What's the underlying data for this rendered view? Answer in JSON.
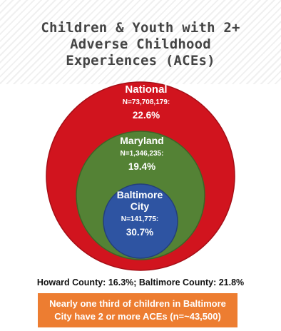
{
  "title": {
    "line1": "Children & Youth with 2+",
    "line2": "Adverse Childhood",
    "line3": "Experiences (ACEs)"
  },
  "circles": {
    "national": {
      "label": "National",
      "n": "N=73,708,179:",
      "pct": "22.6%",
      "color": "#d1141e"
    },
    "maryland": {
      "label": "Maryland",
      "n": "N=1,346,235:",
      "pct": "19.4%",
      "color": "#548235"
    },
    "baltimore": {
      "label_line1": "Baltimore",
      "label_line2": "City",
      "n": "N=141,775:",
      "pct": "30.7%",
      "color": "#2e54a2"
    }
  },
  "footer": {
    "stats": "Howard County: 16.3%; Baltimore County: 21.8%",
    "callout_line1": "Nearly one third of children in Baltimore",
    "callout_line2": "City have 2 or more ACEs (n=~43,500)",
    "callout_color": "#ed7d31"
  }
}
